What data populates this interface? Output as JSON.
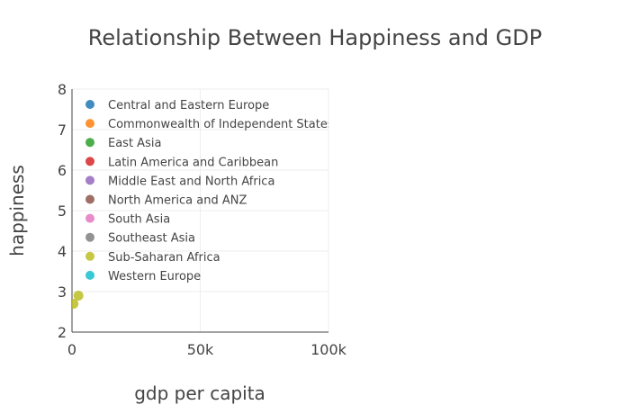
{
  "chart_data": {
    "type": "scatter",
    "title": "Relationship Between Happiness and GDP",
    "xlabel": "gdp per capita",
    "ylabel": "happiness",
    "xlim": [
      0,
      100000
    ],
    "ylim": [
      2,
      8
    ],
    "x_ticks": [
      {
        "value": 0,
        "label": "0"
      },
      {
        "value": 50000,
        "label": "50k"
      },
      {
        "value": 100000,
        "label": "100k"
      }
    ],
    "y_ticks": [
      {
        "value": 2,
        "label": "2"
      },
      {
        "value": 3,
        "label": "3"
      },
      {
        "value": 4,
        "label": "4"
      },
      {
        "value": 5,
        "label": "5"
      },
      {
        "value": 6,
        "label": "6"
      },
      {
        "value": 7,
        "label": "7"
      },
      {
        "value": 8,
        "label": "8"
      }
    ],
    "grid": true,
    "legend_position": "top-left",
    "series": [
      {
        "name": "Central and Eastern Europe",
        "color": "#1f77b4",
        "points": []
      },
      {
        "name": "Commonwealth of Independent States",
        "color": "#ff7f0e",
        "points": []
      },
      {
        "name": "East Asia",
        "color": "#2ca02c",
        "points": []
      },
      {
        "name": "Latin America and Caribbean",
        "color": "#d62728",
        "points": []
      },
      {
        "name": "Middle East and North Africa",
        "color": "#9467bd",
        "points": []
      },
      {
        "name": "North America and ANZ",
        "color": "#8c564b",
        "points": []
      },
      {
        "name": "South Asia",
        "color": "#e377c2",
        "points": []
      },
      {
        "name": "Southeast Asia",
        "color": "#7f7f7f",
        "points": []
      },
      {
        "name": "Sub-Saharan Africa",
        "color": "#bcbd22",
        "points": [
          {
            "x": 600,
            "y": 2.7
          },
          {
            "x": 2500,
            "y": 2.9
          }
        ]
      },
      {
        "name": "Western Europe",
        "color": "#17becf",
        "points": []
      }
    ]
  }
}
